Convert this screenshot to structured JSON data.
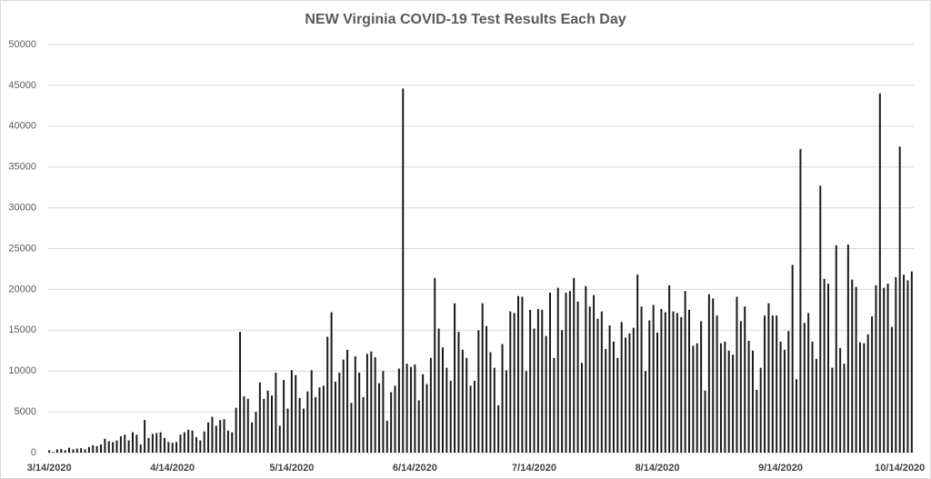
{
  "chart_data": {
    "type": "bar",
    "title": "NEW Virginia COVID-19 Test Results Each Day",
    "categories": [
      "3/14/2020",
      null,
      null,
      null,
      null,
      null,
      null,
      null,
      null,
      null,
      null,
      null,
      null,
      null,
      null,
      null,
      null,
      null,
      null,
      null,
      null,
      null,
      null,
      null,
      null,
      null,
      null,
      null,
      null,
      null,
      null,
      "4/14/2020",
      null,
      null,
      null,
      null,
      null,
      null,
      null,
      null,
      null,
      null,
      null,
      null,
      null,
      null,
      null,
      null,
      null,
      null,
      null,
      null,
      null,
      null,
      null,
      null,
      null,
      null,
      null,
      null,
      null,
      "5/14/2020",
      null,
      null,
      null,
      null,
      null,
      null,
      null,
      null,
      null,
      null,
      null,
      null,
      null,
      null,
      null,
      null,
      null,
      null,
      null,
      null,
      null,
      null,
      null,
      null,
      null,
      null,
      null,
      null,
      null,
      null,
      "6/14/2020",
      null,
      null,
      null,
      null,
      null,
      null,
      null,
      null,
      null,
      null,
      null,
      null,
      null,
      null,
      null,
      null,
      null,
      null,
      null,
      null,
      null,
      null,
      null,
      null,
      null,
      null,
      null,
      null,
      null,
      "7/14/2020",
      null,
      null,
      null,
      null,
      null,
      null,
      null,
      null,
      null,
      null,
      null,
      null,
      null,
      null,
      null,
      null,
      null,
      null,
      null,
      null,
      null,
      null,
      null,
      null,
      null,
      null,
      null,
      null,
      null,
      null,
      "8/14/2020",
      null,
      null,
      null,
      null,
      null,
      null,
      null,
      null,
      null,
      null,
      null,
      null,
      null,
      null,
      null,
      null,
      null,
      null,
      null,
      null,
      null,
      null,
      null,
      null,
      null,
      null,
      null,
      null,
      null,
      null,
      "9/14/2020",
      null,
      null,
      null,
      null,
      null,
      null,
      null,
      null,
      null,
      null,
      null,
      null,
      null,
      null,
      null,
      null,
      null,
      null,
      null,
      null,
      null,
      null,
      null,
      null,
      null,
      null,
      null,
      null,
      null,
      "10/14/2020",
      null,
      null,
      null
    ],
    "values": [
      300,
      100,
      400,
      450,
      300,
      600,
      400,
      500,
      550,
      400,
      700,
      900,
      800,
      1000,
      1700,
      1400,
      1300,
      1500,
      2000,
      2200,
      1500,
      2500,
      2200,
      1000,
      4000,
      1800,
      2300,
      2400,
      2500,
      1800,
      1300,
      1200,
      1300,
      2200,
      2500,
      2800,
      2700,
      1900,
      1500,
      2600,
      3700,
      4400,
      3300,
      4000,
      4100,
      2700,
      2500,
      5500,
      14800,
      6900,
      6600,
      3700,
      5000,
      8600,
      6600,
      7600,
      7000,
      9800,
      3300,
      8900,
      5400,
      10100,
      9500,
      6700,
      5400,
      7500,
      10100,
      6800,
      8000,
      8200,
      14200,
      17200,
      8700,
      9800,
      11400,
      12600,
      6100,
      11800,
      9800,
      6800,
      12100,
      12400,
      11700,
      8500,
      10000,
      3900,
      7400,
      8200,
      10300,
      44600,
      10900,
      10500,
      10800,
      6400,
      9600,
      8400,
      11600,
      21400,
      15200,
      12900,
      10400,
      8800,
      18300,
      14800,
      12600,
      11600,
      8200,
      8800,
      15000,
      18300,
      15500,
      12300,
      10400,
      5800,
      13300,
      10100,
      17300,
      17100,
      19200,
      19100,
      10000,
      17500,
      15200,
      17600,
      17500,
      14300,
      19600,
      11600,
      20200,
      15000,
      19600,
      19800,
      21400,
      18500,
      11000,
      20400,
      17900,
      19300,
      16400,
      17300,
      12700,
      15600,
      13600,
      11600,
      16000,
      14100,
      14600,
      15300,
      21800,
      17900,
      10000,
      16200,
      18100,
      14700,
      17600,
      17200,
      20500,
      17300,
      17100,
      16600,
      19800,
      17500,
      13100,
      13400,
      16100,
      7600,
      19400,
      18900,
      16800,
      13400,
      13600,
      12500,
      12000,
      19100,
      16100,
      17900,
      13700,
      12500,
      7700,
      10400,
      16800,
      18300,
      16800,
      16800,
      13600,
      12600,
      14900,
      23000,
      9000,
      37200,
      15900,
      17100,
      13600,
      11500,
      32700,
      21300,
      20700,
      10400,
      25400,
      12800,
      10900,
      25500,
      21200,
      20300,
      13500,
      13400,
      14500,
      16700,
      20500,
      44000,
      20200,
      20700,
      15400,
      21500,
      37500,
      21800,
      21100,
      22200
    ],
    "color": "#1a1a1a",
    "ylim": [
      0,
      50000
    ],
    "yticks": [
      0,
      5000,
      10000,
      15000,
      20000,
      25000,
      30000,
      35000,
      40000,
      45000,
      50000
    ],
    "grid": true
  }
}
